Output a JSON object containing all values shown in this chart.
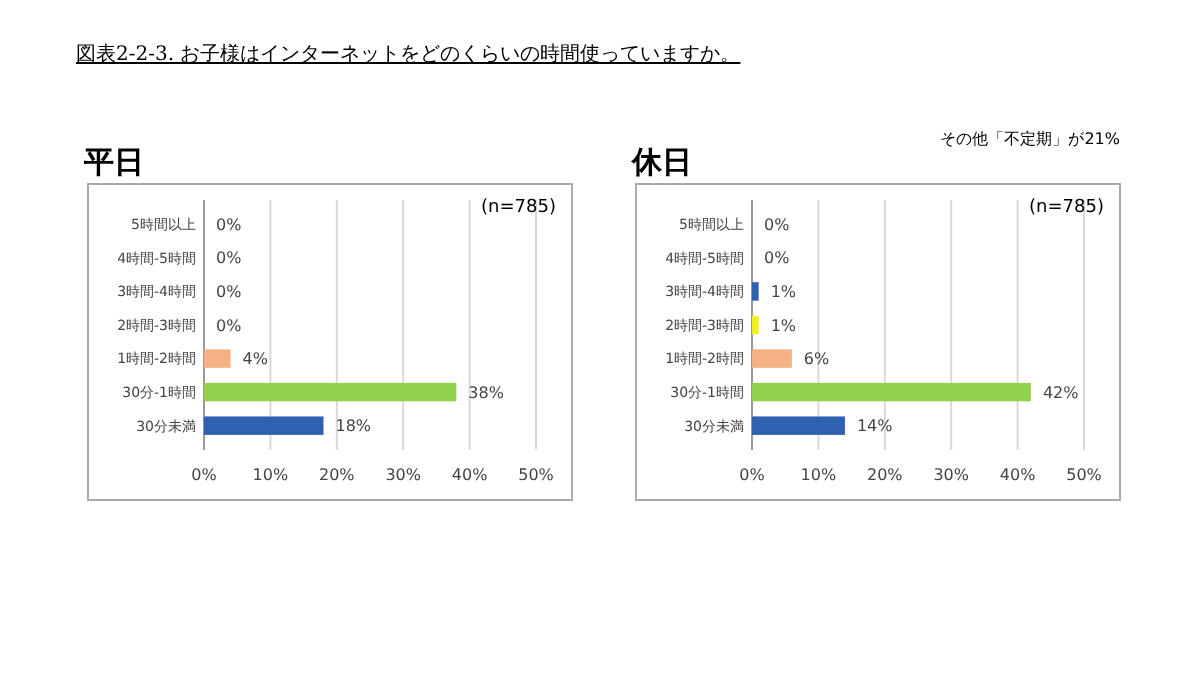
{
  "chart_data": [
    {
      "type": "bar",
      "orientation": "horizontal",
      "title": "平日",
      "annotations": [
        "図表2-2-3. お子様はインターネットをどのくらいの時間使っていますか。",
        "(n=785)"
      ],
      "categories": [
        "5時間以上",
        "4時間-5時間",
        "3時間-4時間",
        "2時間-3時間",
        "1時間-2時間",
        "30分-1時間",
        "30分未満"
      ],
      "values": [
        0,
        0,
        0,
        0,
        4,
        38,
        18
      ],
      "colors": [
        "#2e62b0",
        "#2e62b0",
        "#2e62b0",
        "#c4e07a",
        "#f4b183",
        "#92d050",
        "#2e62b0"
      ],
      "value_labels": [
        "0%",
        "0%",
        "0%",
        "0%",
        "4%",
        "38%",
        "18%"
      ],
      "xlim": [
        0,
        50
      ],
      "xticks": [
        {
          "value": 0,
          "label": "0%"
        },
        {
          "value": 10,
          "label": "10%"
        },
        {
          "value": 20,
          "label": "20%"
        },
        {
          "value": 30,
          "label": "30%"
        },
        {
          "value": 40,
          "label": "40%"
        },
        {
          "value": 50,
          "label": "50%"
        }
      ],
      "grid": "x"
    },
    {
      "type": "bar",
      "orientation": "horizontal",
      "title": "休日",
      "annotations": [
        "その他「不定期」が21%",
        "(n=785)"
      ],
      "categories": [
        "5時間以上",
        "4時間-5時間",
        "3時間-4時間",
        "2時間-3時間",
        "1時間-2時間",
        "30分-1時間",
        "30分未満"
      ],
      "values": [
        0,
        0,
        1,
        1,
        6,
        42,
        14
      ],
      "colors": [
        "#2e62b0",
        "#2e62b0",
        "#2e62b0",
        "#f0f020",
        "#f4b183",
        "#92d050",
        "#2e62b0"
      ],
      "value_labels": [
        "0%",
        "0%",
        "1%",
        "1%",
        "6%",
        "42%",
        "14%"
      ],
      "xlim": [
        0,
        50
      ],
      "xticks": [
        {
          "value": 0,
          "label": "0%"
        },
        {
          "value": 10,
          "label": "10%"
        },
        {
          "value": 20,
          "label": "20%"
        },
        {
          "value": 30,
          "label": "30%"
        },
        {
          "value": 40,
          "label": "40%"
        },
        {
          "value": 50,
          "label": "50%"
        }
      ],
      "grid": "x"
    }
  ]
}
